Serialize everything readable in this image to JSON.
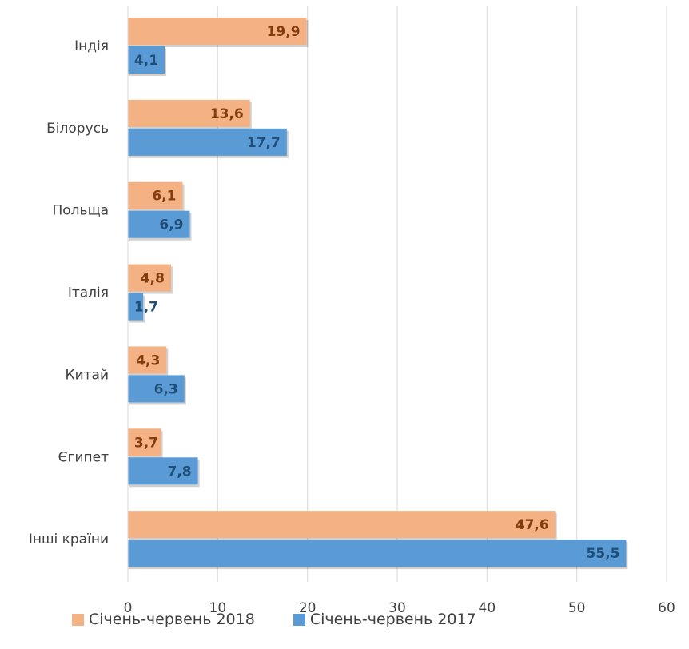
{
  "chart_data": {
    "type": "bar",
    "orientation": "horizontal",
    "categories": [
      "Індія",
      "Білорусь",
      "Польща",
      "Італія",
      "Китай",
      "Єгипет",
      "Інші країни"
    ],
    "series": [
      {
        "name": "Січень-червень 2018",
        "color": "#f4b183",
        "label_color": "#843c0c",
        "values": [
          19.9,
          13.6,
          6.1,
          4.8,
          4.3,
          3.7,
          47.6
        ]
      },
      {
        "name": "Січень-червень 2017",
        "color": "#5b9bd5",
        "label_color": "#1f4e79",
        "values": [
          4.1,
          17.7,
          6.9,
          1.7,
          6.3,
          7.8,
          55.5
        ]
      }
    ],
    "value_labels": {
      "s2018": [
        "19,9",
        "13,6",
        "6,1",
        "4,8",
        "4,3",
        "3,7",
        "47,6"
      ],
      "s2017": [
        "4,1",
        "17,7",
        "6,9",
        "1,7",
        "6,3",
        "7,8",
        "55,5"
      ]
    },
    "xticks": [
      "0",
      "10",
      "20",
      "30",
      "40",
      "50",
      "60"
    ],
    "xlim": [
      0,
      60
    ],
    "grid": true,
    "legend": "bottom",
    "title": "",
    "xlabel": "",
    "ylabel": ""
  },
  "legend": {
    "s2018": "Січень-червень 2018",
    "s2017": "Січень-червень 2017"
  }
}
